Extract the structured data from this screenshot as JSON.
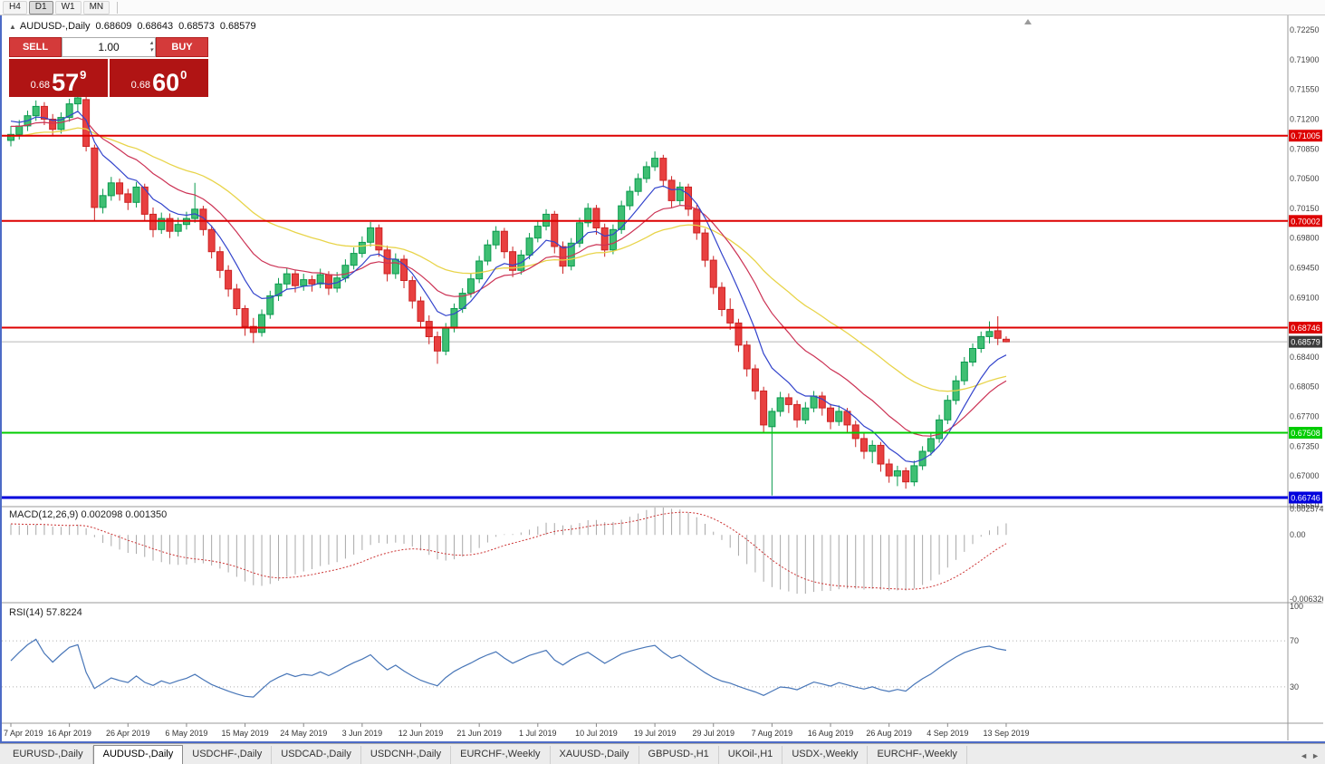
{
  "toolbar": {
    "timeframes": [
      "H4",
      "D1",
      "W1",
      "MN"
    ],
    "active": "D1"
  },
  "chart": {
    "symbol": "AUDUSD-,Daily",
    "expand_icon": "▲",
    "ohlc": {
      "open": "0.68609",
      "high": "0.68643",
      "low": "0.68573",
      "close": "0.68579"
    }
  },
  "trade_panel": {
    "sell_label": "SELL",
    "buy_label": "BUY",
    "volume": "1.00",
    "spin_up_icon": "▴",
    "spin_down_icon": "▾",
    "sell_price": {
      "prefix": "0.68",
      "big": "57",
      "sup": "9"
    },
    "buy_price": {
      "prefix": "0.68",
      "big": "60",
      "sup": "0"
    }
  },
  "price_axis": {
    "ticks": [
      "0.72250",
      "0.71900",
      "0.71550",
      "0.71200",
      "0.70850",
      "0.70500",
      "0.70150",
      "0.69800",
      "0.69450",
      "0.69100",
      "0.68750",
      "0.68400",
      "0.68050",
      "0.67700",
      "0.67350",
      "0.67000",
      "0.66650"
    ]
  },
  "main_chart": {
    "hlines": [
      {
        "price": 0.71005,
        "label": "0.71005",
        "color": "#dd0000",
        "width": 2
      },
      {
        "price": 0.70002,
        "label": "0.70002",
        "color": "#dd0000",
        "width": 2
      },
      {
        "price": 0.68746,
        "label": "0.68746",
        "color": "#dd0000",
        "width": 2
      },
      {
        "price": 0.67508,
        "label": "0.67508",
        "color": "#00cc00",
        "width": 2
      },
      {
        "price": 0.66746,
        "label": "0.66746",
        "color": "#0000dd",
        "width": 3
      }
    ],
    "current_price": {
      "price": 0.68579,
      "label": "0.68579",
      "color": "#3a3a3a"
    },
    "colors": {
      "up_fill": "#3fbf73",
      "up_stroke": "#0a9a4e",
      "down_fill": "#e84040",
      "down_stroke": "#cc2222",
      "ma_fast": "#3344cc",
      "ma_mid": "#cc3355",
      "ma_slow": "#e8d44a"
    }
  },
  "chart_data": {
    "type": "candlestick",
    "symbol": "AUDUSD",
    "timeframe": "Daily",
    "bars_per_label": 7,
    "x_labels": [
      "7 Apr 2019",
      "16 Apr 2019",
      "26 Apr 2019",
      "6 May 2019",
      "15 May 2019",
      "24 May 2019",
      "3 Jun 2019",
      "12 Jun 2019",
      "21 Jun 2019",
      "1 Jul 2019",
      "10 Jul 2019",
      "19 Jul 2019",
      "29 Jul 2019",
      "7 Aug 2019",
      "16 Aug 2019",
      "26 Aug 2019",
      "4 Sep 2019",
      "13 Sep 2019"
    ],
    "y_range": {
      "top": 0.72421,
      "bottom": 0.66649
    },
    "ohlc": [
      [
        0.7095,
        0.7112,
        0.7088,
        0.7102
      ],
      [
        0.7102,
        0.7119,
        0.7096,
        0.7112
      ],
      [
        0.7112,
        0.713,
        0.7106,
        0.7124
      ],
      [
        0.7124,
        0.7142,
        0.7118,
        0.7135
      ],
      [
        0.7135,
        0.714,
        0.7113,
        0.712
      ],
      [
        0.712,
        0.7126,
        0.7101,
        0.7108
      ],
      [
        0.7108,
        0.7128,
        0.7103,
        0.7122
      ],
      [
        0.7122,
        0.7144,
        0.7117,
        0.7138
      ],
      [
        0.7138,
        0.7155,
        0.713,
        0.7145
      ],
      [
        0.7143,
        0.7148,
        0.7082,
        0.7088
      ],
      [
        0.7086,
        0.709,
        0.7,
        0.7016
      ],
      [
        0.7016,
        0.7038,
        0.7009,
        0.703
      ],
      [
        0.703,
        0.7052,
        0.7024,
        0.7045
      ],
      [
        0.7045,
        0.705,
        0.7024,
        0.7032
      ],
      [
        0.7032,
        0.7038,
        0.7013,
        0.7022
      ],
      [
        0.7022,
        0.7046,
        0.7016,
        0.704
      ],
      [
        0.704,
        0.7044,
        0.7001,
        0.7008
      ],
      [
        0.7008,
        0.7016,
        0.6981,
        0.699
      ],
      [
        0.699,
        0.701,
        0.6985,
        0.7003
      ],
      [
        0.7003,
        0.7009,
        0.698,
        0.6988
      ],
      [
        0.6988,
        0.7004,
        0.6982,
        0.6996
      ],
      [
        0.6996,
        0.7011,
        0.699,
        0.7003
      ],
      [
        0.7003,
        0.7045,
        0.6998,
        0.7014
      ],
      [
        0.7014,
        0.7018,
        0.6983,
        0.699
      ],
      [
        0.699,
        0.6995,
        0.6956,
        0.6964
      ],
      [
        0.6964,
        0.697,
        0.6933,
        0.6942
      ],
      [
        0.6942,
        0.6948,
        0.6911,
        0.692
      ],
      [
        0.692,
        0.6926,
        0.6889,
        0.6897
      ],
      [
        0.6897,
        0.6901,
        0.6865,
        0.6876
      ],
      [
        0.6876,
        0.6886,
        0.68565,
        0.6869
      ],
      [
        0.6869,
        0.6896,
        0.6864,
        0.689
      ],
      [
        0.689,
        0.6918,
        0.6885,
        0.6912
      ],
      [
        0.6912,
        0.6933,
        0.6906,
        0.6926
      ],
      [
        0.6926,
        0.6945,
        0.692,
        0.6938
      ],
      [
        0.6938,
        0.6942,
        0.6916,
        0.6924
      ],
      [
        0.6924,
        0.6938,
        0.6918,
        0.6931
      ],
      [
        0.6931,
        0.6936,
        0.6917,
        0.6926
      ],
      [
        0.6926,
        0.6944,
        0.6921,
        0.6937
      ],
      [
        0.6937,
        0.6941,
        0.6913,
        0.6921
      ],
      [
        0.6921,
        0.694,
        0.6916,
        0.6933
      ],
      [
        0.6933,
        0.6955,
        0.6928,
        0.6948
      ],
      [
        0.6948,
        0.6969,
        0.6943,
        0.6962
      ],
      [
        0.6962,
        0.6982,
        0.6957,
        0.6975
      ],
      [
        0.6975,
        0.6999,
        0.697,
        0.6992
      ],
      [
        0.6992,
        0.6996,
        0.6958,
        0.6966
      ],
      [
        0.6966,
        0.6971,
        0.6929,
        0.6938
      ],
      [
        0.6938,
        0.6962,
        0.6932,
        0.6955
      ],
      [
        0.6955,
        0.696,
        0.6921,
        0.693
      ],
      [
        0.693,
        0.6935,
        0.6897,
        0.6906
      ],
      [
        0.6906,
        0.6911,
        0.6874,
        0.6882
      ],
      [
        0.6882,
        0.6889,
        0.6855,
        0.6864
      ],
      [
        0.6864,
        0.687,
        0.6832,
        0.6847
      ],
      [
        0.6847,
        0.688,
        0.6842,
        0.6874
      ],
      [
        0.6874,
        0.6903,
        0.6869,
        0.6897
      ],
      [
        0.6897,
        0.6921,
        0.6892,
        0.6915
      ],
      [
        0.6915,
        0.6938,
        0.691,
        0.6932
      ],
      [
        0.6932,
        0.6959,
        0.6927,
        0.6953
      ],
      [
        0.6953,
        0.6978,
        0.6948,
        0.6972
      ],
      [
        0.6972,
        0.6994,
        0.6967,
        0.6988
      ],
      [
        0.6988,
        0.6992,
        0.6956,
        0.6964
      ],
      [
        0.6964,
        0.697,
        0.6934,
        0.6942
      ],
      [
        0.6942,
        0.6966,
        0.6937,
        0.696
      ],
      [
        0.696,
        0.6986,
        0.6955,
        0.698
      ],
      [
        0.698,
        0.7,
        0.6975,
        0.6994
      ],
      [
        0.6994,
        0.7014,
        0.6989,
        0.7008
      ],
      [
        0.7008,
        0.7012,
        0.6962,
        0.697
      ],
      [
        0.697,
        0.6976,
        0.6938,
        0.6947
      ],
      [
        0.6947,
        0.698,
        0.6942,
        0.6974
      ],
      [
        0.6974,
        0.7004,
        0.6969,
        0.6998
      ],
      [
        0.6998,
        0.7021,
        0.6993,
        0.7015
      ],
      [
        0.7015,
        0.7019,
        0.6984,
        0.6992
      ],
      [
        0.6992,
        0.6997,
        0.6958,
        0.6966
      ],
      [
        0.6966,
        0.6996,
        0.6961,
        0.699
      ],
      [
        0.699,
        0.7024,
        0.6985,
        0.7018
      ],
      [
        0.7018,
        0.7041,
        0.7013,
        0.7035
      ],
      [
        0.7035,
        0.7056,
        0.703,
        0.705
      ],
      [
        0.705,
        0.707,
        0.7045,
        0.7064
      ],
      [
        0.7064,
        0.7082,
        0.7059,
        0.7074
      ],
      [
        0.7074,
        0.7078,
        0.704,
        0.7048
      ],
      [
        0.7048,
        0.7053,
        0.7016,
        0.7024
      ],
      [
        0.7024,
        0.7046,
        0.7019,
        0.704
      ],
      [
        0.704,
        0.7044,
        0.7006,
        0.7014
      ],
      [
        0.7014,
        0.7019,
        0.6978,
        0.6986
      ],
      [
        0.6986,
        0.6991,
        0.6946,
        0.6954
      ],
      [
        0.6954,
        0.6959,
        0.6914,
        0.6922
      ],
      [
        0.6922,
        0.6928,
        0.6888,
        0.6896
      ],
      [
        0.6896,
        0.6909,
        0.6872,
        0.688
      ],
      [
        0.688,
        0.6885,
        0.6846,
        0.6854
      ],
      [
        0.6854,
        0.6859,
        0.6817,
        0.6826
      ],
      [
        0.6826,
        0.6831,
        0.679,
        0.68
      ],
      [
        0.68,
        0.6805,
        0.675,
        0.676
      ],
      [
        0.6758,
        0.678,
        0.6677,
        0.6776
      ],
      [
        0.6776,
        0.6799,
        0.677,
        0.6792
      ],
      [
        0.6792,
        0.6797,
        0.6774,
        0.6784
      ],
      [
        0.6784,
        0.6789,
        0.6757,
        0.6766
      ],
      [
        0.6766,
        0.6787,
        0.6761,
        0.678
      ],
      [
        0.678,
        0.68,
        0.6775,
        0.6794
      ],
      [
        0.6794,
        0.6799,
        0.6771,
        0.678
      ],
      [
        0.678,
        0.6785,
        0.6755,
        0.6764
      ],
      [
        0.6764,
        0.6783,
        0.6759,
        0.6776
      ],
      [
        0.6776,
        0.678,
        0.675,
        0.676
      ],
      [
        0.676,
        0.6765,
        0.6734,
        0.6744
      ],
      [
        0.6744,
        0.675,
        0.672,
        0.6729
      ],
      [
        0.6729,
        0.6742,
        0.6715,
        0.6736
      ],
      [
        0.6736,
        0.674,
        0.6705,
        0.6714
      ],
      [
        0.6714,
        0.672,
        0.6692,
        0.67
      ],
      [
        0.67,
        0.6712,
        0.6688,
        0.6706
      ],
      [
        0.6706,
        0.671,
        0.6685,
        0.6693
      ],
      [
        0.6693,
        0.6718,
        0.6688,
        0.6712
      ],
      [
        0.6712,
        0.6735,
        0.6707,
        0.6729
      ],
      [
        0.6729,
        0.675,
        0.6724,
        0.6744
      ],
      [
        0.6744,
        0.6772,
        0.6739,
        0.6766
      ],
      [
        0.6766,
        0.6795,
        0.6761,
        0.6789
      ],
      [
        0.6789,
        0.6818,
        0.6784,
        0.6812
      ],
      [
        0.6812,
        0.684,
        0.6807,
        0.6834
      ],
      [
        0.6834,
        0.6856,
        0.6829,
        0.685
      ],
      [
        0.685,
        0.687,
        0.6845,
        0.6864
      ],
      [
        0.6864,
        0.6882,
        0.6856,
        0.687
      ],
      [
        0.6871,
        0.6888,
        0.6854,
        0.6862
      ],
      [
        0.68609,
        0.68643,
        0.68573,
        0.68579
      ]
    ]
  },
  "indicators": {
    "macd": {
      "label": "MACD(12,26,9) 0.002098 0.001350",
      "params": [
        12,
        26,
        9
      ],
      "values": [
        "0.002098",
        "0.001350"
      ],
      "axis": [
        {
          "text": "0.002574",
          "value": 0.002574
        },
        {
          "text": "0.00",
          "value": 0
        },
        {
          "text": "-0.006326",
          "value": -0.006326
        }
      ],
      "hist_color": "#a8a8a8",
      "signal_color": "#cc3333"
    },
    "rsi": {
      "label": "RSI(14) 57.8224",
      "period": 14,
      "value": "57.8224",
      "axis": [
        {
          "text": "100",
          "value": 100
        },
        {
          "text": "70",
          "value": 70
        },
        {
          "text": "30",
          "value": 30
        }
      ],
      "levels": [
        70,
        30
      ],
      "line_color": "#4876b8"
    }
  },
  "tabs": {
    "items": [
      "EURUSD-,Daily",
      "AUDUSD-,Daily",
      "USDCHF-,Daily",
      "USDCAD-,Daily",
      "USDCNH-,Daily",
      "EURCHF-,Weekly",
      "XAUUSD-,Daily",
      "GBPUSD-,H1",
      "UKOil-,H1",
      "USDX-,Weekly",
      "EURCHF-,Weekly"
    ],
    "active_index": 1,
    "scroll_left_icon": "◄",
    "scroll_right_icon": "►"
  }
}
